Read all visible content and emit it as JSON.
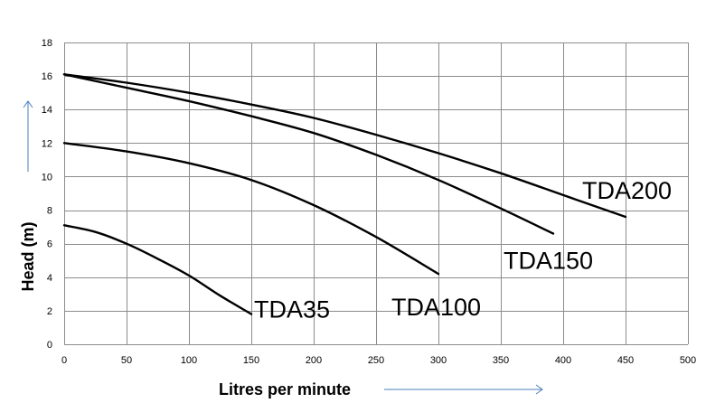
{
  "chart_data": {
    "type": "line",
    "title": "",
    "xlabel": "Litres per minute",
    "ylabel": "Head (m)",
    "xlim": [
      0,
      500
    ],
    "ylim": [
      0,
      18
    ],
    "xticks": [
      0,
      50,
      100,
      150,
      200,
      250,
      300,
      350,
      400,
      450,
      500
    ],
    "yticks": [
      0,
      2,
      4,
      6,
      8,
      10,
      12,
      14,
      16,
      18
    ],
    "grid": true,
    "legend": "none",
    "series": [
      {
        "name": "TDA35",
        "x": [
          0,
          25,
          50,
          75,
          100,
          125,
          150
        ],
        "y": [
          7.1,
          6.7,
          6.0,
          5.1,
          4.1,
          2.9,
          1.8
        ]
      },
      {
        "name": "TDA100",
        "x": [
          0,
          50,
          100,
          150,
          200,
          250,
          300
        ],
        "y": [
          12.0,
          11.5,
          10.8,
          9.8,
          8.3,
          6.4,
          4.2
        ]
      },
      {
        "name": "TDA150",
        "x": [
          0,
          50,
          100,
          150,
          200,
          250,
          300,
          350,
          392
        ],
        "y": [
          16.1,
          15.3,
          14.5,
          13.6,
          12.6,
          11.3,
          9.8,
          8.1,
          6.6
        ]
      },
      {
        "name": "TDA200",
        "x": [
          0,
          50,
          100,
          150,
          200,
          250,
          300,
          350,
          400,
          450
        ],
        "y": [
          16.1,
          15.6,
          15.0,
          14.3,
          13.5,
          12.5,
          11.4,
          10.2,
          8.9,
          7.6
        ]
      }
    ]
  }
}
